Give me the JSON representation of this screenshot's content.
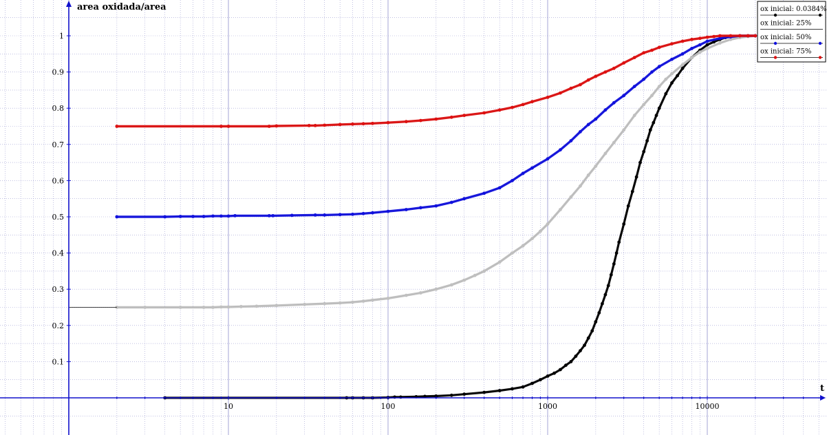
{
  "chart_data": {
    "type": "scatter",
    "title": "",
    "xlabel": "t",
    "ylabel": "area oxidada/area",
    "x_scale": "log",
    "xlim": [
      1,
      50000
    ],
    "ylim": [
      0,
      1.05
    ],
    "x_ticks": [
      10,
      100,
      1000,
      10000
    ],
    "x_tick_labels": [
      "10",
      "100",
      "1000",
      "10000"
    ],
    "y_ticks": [
      0.1,
      0.2,
      0.3,
      0.4,
      0.5,
      0.6,
      0.7,
      0.8,
      0.9,
      1
    ],
    "y_tick_labels": [
      "0.1",
      "0.2",
      "0.3",
      "0.4",
      "0.5",
      "0.6",
      "0.7",
      "0.8",
      "0.9",
      "1"
    ],
    "grid": true,
    "legend_position": "top-right",
    "colors": {
      "axis": "#1010cc",
      "grid": "#9a9ad0"
    },
    "series": [
      {
        "name": "ox inicial: 0.0384%",
        "color": "#000000",
        "x": [
          4,
          55,
          60,
          70,
          80,
          100,
          110,
          120,
          150,
          170,
          200,
          250,
          300,
          400,
          500,
          600,
          700,
          800,
          900,
          1000,
          1100,
          1200,
          1300,
          1400,
          1500,
          1600,
          1700,
          1800,
          1900,
          2000,
          2100,
          2200,
          2300,
          2400,
          2500,
          2600,
          2700,
          2800,
          3000,
          3200,
          3400,
          3600,
          3800,
          4000,
          4200,
          4400,
          4600,
          4800,
          5000,
          5500,
          6000,
          6500,
          7000,
          8000,
          9000,
          10000,
          11000,
          12000,
          13000,
          14000,
          16000,
          18000,
          20000
        ],
        "y": [
          0,
          0,
          0,
          0,
          0,
          0.001,
          0.002,
          0.002,
          0.003,
          0.004,
          0.005,
          0.007,
          0.01,
          0.015,
          0.02,
          0.025,
          0.03,
          0.04,
          0.05,
          0.06,
          0.068,
          0.078,
          0.09,
          0.1,
          0.115,
          0.13,
          0.145,
          0.165,
          0.185,
          0.21,
          0.235,
          0.26,
          0.285,
          0.31,
          0.34,
          0.37,
          0.4,
          0.43,
          0.48,
          0.53,
          0.57,
          0.61,
          0.65,
          0.68,
          0.71,
          0.74,
          0.76,
          0.78,
          0.8,
          0.84,
          0.87,
          0.89,
          0.91,
          0.94,
          0.96,
          0.975,
          0.983,
          0.99,
          0.995,
          0.998,
          1,
          1,
          1
        ]
      },
      {
        "name": "ox inicial: 25%",
        "color": "#c0c0c0",
        "x": [
          2,
          3,
          5,
          7,
          8,
          9,
          10,
          12,
          15,
          20,
          30,
          40,
          50,
          60,
          70,
          80,
          100,
          130,
          160,
          200,
          250,
          300,
          350,
          400,
          500,
          600,
          700,
          800,
          900,
          1000,
          1200,
          1400,
          1600,
          1800,
          2000,
          2300,
          2600,
          3000,
          3500,
          4000,
          4500,
          5000,
          5500,
          6000,
          7000,
          8000,
          9000,
          10000,
          12000,
          14000,
          16000,
          18000,
          20000
        ],
        "y": [
          0.25,
          0.25,
          0.25,
          0.25,
          0.25,
          0.251,
          0.251,
          0.252,
          0.253,
          0.255,
          0.258,
          0.26,
          0.262,
          0.264,
          0.267,
          0.27,
          0.275,
          0.283,
          0.29,
          0.3,
          0.312,
          0.325,
          0.338,
          0.35,
          0.375,
          0.4,
          0.42,
          0.44,
          0.46,
          0.48,
          0.52,
          0.555,
          0.585,
          0.615,
          0.64,
          0.675,
          0.705,
          0.74,
          0.78,
          0.81,
          0.835,
          0.86,
          0.88,
          0.895,
          0.92,
          0.94,
          0.955,
          0.965,
          0.98,
          0.99,
          0.995,
          0.998,
          1
        ]
      },
      {
        "name": "ox inicial: 50%",
        "color": "#1111dd",
        "x": [
          2,
          4,
          5,
          6,
          7,
          8,
          9,
          10,
          11,
          18,
          19,
          25,
          35,
          40,
          50,
          60,
          70,
          80,
          100,
          130,
          160,
          200,
          250,
          300,
          400,
          500,
          600,
          700,
          800,
          1000,
          1200,
          1400,
          1600,
          1800,
          2000,
          2300,
          2600,
          3000,
          3500,
          4000,
          4500,
          5000,
          6000,
          7000,
          8000,
          9000,
          10000,
          12000,
          14000,
          16000,
          18000,
          20000
        ],
        "y": [
          0.5,
          0.5,
          0.501,
          0.501,
          0.501,
          0.502,
          0.502,
          0.502,
          0.503,
          0.503,
          0.503,
          0.504,
          0.505,
          0.505,
          0.506,
          0.507,
          0.509,
          0.511,
          0.515,
          0.52,
          0.525,
          0.53,
          0.54,
          0.55,
          0.565,
          0.58,
          0.6,
          0.62,
          0.635,
          0.66,
          0.685,
          0.71,
          0.735,
          0.755,
          0.77,
          0.795,
          0.815,
          0.835,
          0.86,
          0.88,
          0.9,
          0.915,
          0.935,
          0.95,
          0.965,
          0.975,
          0.985,
          0.993,
          0.997,
          1,
          1,
          1
        ]
      },
      {
        "name": "ox inicial: 75%",
        "color": "#dd1111",
        "x": [
          2,
          9,
          10,
          18,
          20,
          32,
          35,
          40,
          50,
          60,
          70,
          80,
          100,
          130,
          160,
          200,
          250,
          300,
          400,
          500,
          600,
          700,
          800,
          1000,
          1200,
          1400,
          1600,
          1800,
          2000,
          2300,
          2600,
          3000,
          3500,
          4000,
          4500,
          5000,
          6000,
          7000,
          8000,
          9000,
          10000,
          11000,
          12000,
          14000,
          16000,
          18000,
          20000
        ],
        "y": [
          0.75,
          0.75,
          0.75,
          0.75,
          0.751,
          0.752,
          0.752,
          0.753,
          0.755,
          0.756,
          0.757,
          0.758,
          0.76,
          0.763,
          0.766,
          0.77,
          0.775,
          0.78,
          0.787,
          0.795,
          0.802,
          0.81,
          0.818,
          0.83,
          0.842,
          0.855,
          0.865,
          0.878,
          0.888,
          0.9,
          0.91,
          0.925,
          0.94,
          0.953,
          0.96,
          0.968,
          0.978,
          0.985,
          0.99,
          0.993,
          0.996,
          0.998,
          1,
          1,
          1,
          1,
          1
        ]
      }
    ]
  }
}
